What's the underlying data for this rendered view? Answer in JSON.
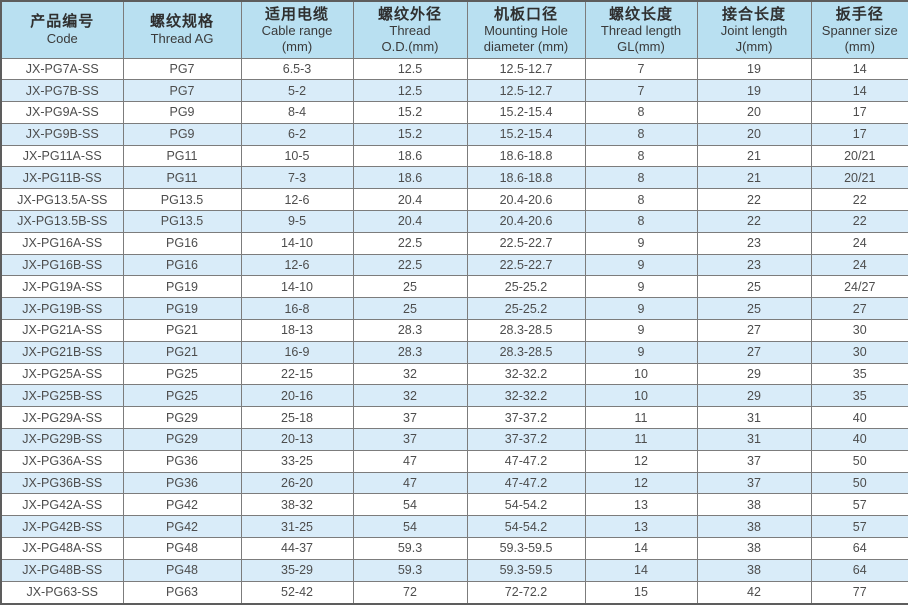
{
  "colors": {
    "header_bg": "#b9e0f1",
    "row_bg": "#ffffff",
    "row_alt_bg": "#d9ecf9",
    "grid_line": "#7c7c7c",
    "outer_border": "#5d5d5d",
    "text": "#4d4d4d"
  },
  "chart_data": {
    "type": "table",
    "title": "",
    "legend_position": "none",
    "grid": true,
    "columns": [
      {
        "zh": "产品编号",
        "en": [
          "Code"
        ]
      },
      {
        "zh": "螺纹规格",
        "en": [
          "Thread AG"
        ]
      },
      {
        "zh": "适用电缆",
        "en": [
          "Cable range",
          "(mm)"
        ]
      },
      {
        "zh": "螺纹外径",
        "en": [
          "Thread",
          "O.D.(mm)"
        ]
      },
      {
        "zh": "机板口径",
        "en": [
          "Mounting Hole",
          "diameter (mm)"
        ]
      },
      {
        "zh": "螺纹长度",
        "en": [
          "Thread length",
          "GL(mm)"
        ]
      },
      {
        "zh": "接合长度",
        "en": [
          "Joint length",
          "J(mm)"
        ]
      },
      {
        "zh": "扳手径",
        "en": [
          "Spanner size",
          "(mm)"
        ]
      }
    ],
    "rows": [
      [
        "JX-PG7A-SS",
        "PG7",
        "6.5-3",
        "12.5",
        "12.5-12.7",
        "7",
        "19",
        "14"
      ],
      [
        "JX-PG7B-SS",
        "PG7",
        "5-2",
        "12.5",
        "12.5-12.7",
        "7",
        "19",
        "14"
      ],
      [
        "JX-PG9A-SS",
        "PG9",
        "8-4",
        "15.2",
        "15.2-15.4",
        "8",
        "20",
        "17"
      ],
      [
        "JX-PG9B-SS",
        "PG9",
        "6-2",
        "15.2",
        "15.2-15.4",
        "8",
        "20",
        "17"
      ],
      [
        "JX-PG11A-SS",
        "PG11",
        "10-5",
        "18.6",
        "18.6-18.8",
        "8",
        "21",
        "20/21"
      ],
      [
        "JX-PG11B-SS",
        "PG11",
        "7-3",
        "18.6",
        "18.6-18.8",
        "8",
        "21",
        "20/21"
      ],
      [
        "JX-PG13.5A-SS",
        "PG13.5",
        "12-6",
        "20.4",
        "20.4-20.6",
        "8",
        "22",
        "22"
      ],
      [
        "JX-PG13.5B-SS",
        "PG13.5",
        "9-5",
        "20.4",
        "20.4-20.6",
        "8",
        "22",
        "22"
      ],
      [
        "JX-PG16A-SS",
        "PG16",
        "14-10",
        "22.5",
        "22.5-22.7",
        "9",
        "23",
        "24"
      ],
      [
        "JX-PG16B-SS",
        "PG16",
        "12-6",
        "22.5",
        "22.5-22.7",
        "9",
        "23",
        "24"
      ],
      [
        "JX-PG19A-SS",
        "PG19",
        "14-10",
        "25",
        "25-25.2",
        "9",
        "25",
        "24/27"
      ],
      [
        "JX-PG19B-SS",
        "PG19",
        "16-8",
        "25",
        "25-25.2",
        "9",
        "25",
        "27"
      ],
      [
        "JX-PG21A-SS",
        "PG21",
        "18-13",
        "28.3",
        "28.3-28.5",
        "9",
        "27",
        "30"
      ],
      [
        "JX-PG21B-SS",
        "PG21",
        "16-9",
        "28.3",
        "28.3-28.5",
        "9",
        "27",
        "30"
      ],
      [
        "JX-PG25A-SS",
        "PG25",
        "22-15",
        "32",
        "32-32.2",
        "10",
        "29",
        "35"
      ],
      [
        "JX-PG25B-SS",
        "PG25",
        "20-16",
        "32",
        "32-32.2",
        "10",
        "29",
        "35"
      ],
      [
        "JX-PG29A-SS",
        "PG29",
        "25-18",
        "37",
        "37-37.2",
        "11",
        "31",
        "40"
      ],
      [
        "JX-PG29B-SS",
        "PG29",
        "20-13",
        "37",
        "37-37.2",
        "11",
        "31",
        "40"
      ],
      [
        "JX-PG36A-SS",
        "PG36",
        "33-25",
        "47",
        "47-47.2",
        "12",
        "37",
        "50"
      ],
      [
        "JX-PG36B-SS",
        "PG36",
        "26-20",
        "47",
        "47-47.2",
        "12",
        "37",
        "50"
      ],
      [
        "JX-PG42A-SS",
        "PG42",
        "38-32",
        "54",
        "54-54.2",
        "13",
        "38",
        "57"
      ],
      [
        "JX-PG42B-SS",
        "PG42",
        "31-25",
        "54",
        "54-54.2",
        "13",
        "38",
        "57"
      ],
      [
        "JX-PG48A-SS",
        "PG48",
        "44-37",
        "59.3",
        "59.3-59.5",
        "14",
        "38",
        "64"
      ],
      [
        "JX-PG48B-SS",
        "PG48",
        "35-29",
        "59.3",
        "59.3-59.5",
        "14",
        "38",
        "64"
      ],
      [
        "JX-PG63-SS",
        "PG63",
        "52-42",
        "72",
        "72-72.2",
        "15",
        "42",
        "77"
      ]
    ]
  }
}
